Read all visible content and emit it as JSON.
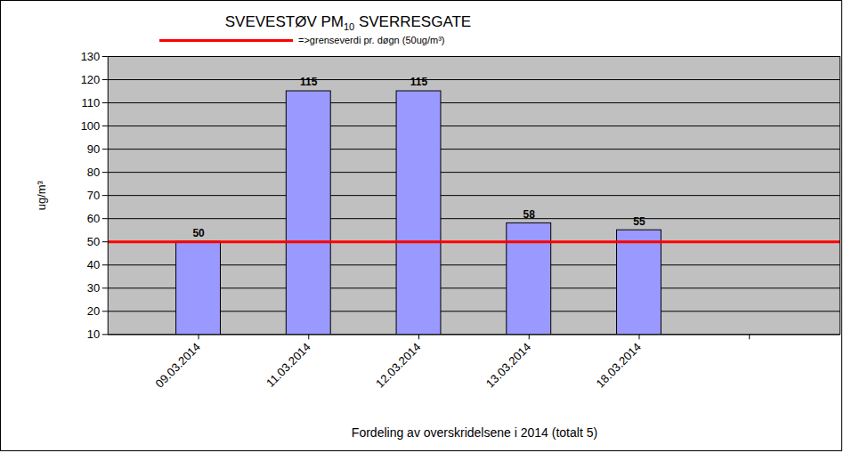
{
  "chart_data": {
    "type": "bar",
    "title": "SVEVESTØV PM10 SVERRESGATE",
    "x_label": "Fordeling av overskridelsene i 2014 (totalt 5)",
    "y_label": "ug/m³",
    "categories": [
      "09.03.2014",
      "11.03.2014",
      "12.03.2014",
      "13.03.2014",
      "18.03.2014",
      null
    ],
    "values": [
      50,
      115,
      115,
      58,
      55,
      null
    ],
    "color": "#9999ff",
    "ylim": [
      10,
      130
    ],
    "yticks": [
      10,
      20,
      30,
      40,
      50,
      60,
      70,
      80,
      90,
      100,
      110,
      120,
      130
    ],
    "grid": true,
    "data_labels": true,
    "reference_line": {
      "value": 50,
      "label": "=>grenseverdi  pr. døgn  (50ug/m³)",
      "color": "#ff0000"
    }
  }
}
